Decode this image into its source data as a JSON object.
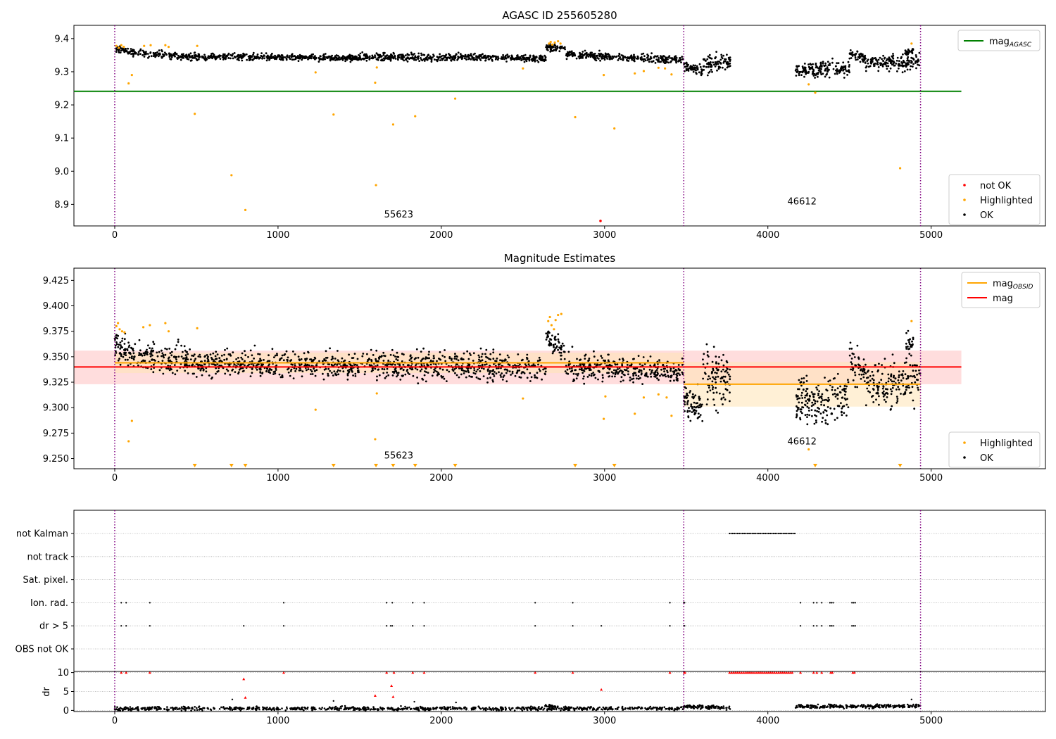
{
  "colors": {
    "ok": "#000000",
    "highlighted": "#ffa500",
    "not_ok": "#ff0000",
    "agasc_line": "#008000",
    "mag_line": "#ff0000",
    "mag_obsid": "#ffa500",
    "obsid_sep": "#800080",
    "band_mag": "#ffb3b3",
    "band_obsid": "#ffe4b5"
  },
  "chart_data": [
    {
      "type": "scatter",
      "title": "AGASC ID 255605280",
      "xlim": [
        -250,
        5700
      ],
      "ylim": [
        8.835,
        9.44
      ],
      "x_ticks": [
        0,
        1000,
        2000,
        3000,
        4000,
        5000
      ],
      "y_ticks": [
        8.9,
        9.0,
        9.1,
        9.2,
        9.3,
        9.4
      ],
      "y_tick_labels": [
        "8.9",
        "9.0",
        "9.1",
        "9.2",
        "9.3",
        "9.4"
      ],
      "obsid_boundaries": [
        0,
        3485,
        4935
      ],
      "obsid_labels": [
        {
          "text": "55623",
          "x": 1650,
          "y": 8.86
        },
        {
          "text": "46612",
          "x": 4120,
          "y": 8.9
        }
      ],
      "legend_top": {
        "position": "top-right",
        "entries": [
          {
            "label": "mag",
            "sub": "AGASC",
            "kind": "line",
            "color": "#008000"
          }
        ]
      },
      "legend_bottom": {
        "position": "bottom-right",
        "entries": [
          {
            "label": "not OK",
            "kind": "dot",
            "color": "#ff0000"
          },
          {
            "label": "Highlighted",
            "kind": "dot",
            "color": "#ffa500"
          },
          {
            "label": "OK",
            "kind": "dot",
            "color": "#000000"
          }
        ]
      },
      "reference_lines": [
        {
          "name": "mag AGASC",
          "y": 9.241,
          "x_range": [
            -250,
            5185
          ]
        }
      ],
      "ok_segments": [
        {
          "x0": 0,
          "x1": 100,
          "y0": 9.368,
          "y1": 9.362,
          "spread": 0.007,
          "n": 50
        },
        {
          "x0": 100,
          "x1": 500,
          "y0": 9.358,
          "y1": 9.345,
          "spread": 0.008,
          "n": 160
        },
        {
          "x0": 500,
          "x1": 1500,
          "y0": 9.345,
          "y1": 9.342,
          "spread": 0.007,
          "n": 420
        },
        {
          "x0": 1500,
          "x1": 2100,
          "y0": 9.345,
          "y1": 9.343,
          "spread": 0.008,
          "n": 250
        },
        {
          "x0": 2100,
          "x1": 2640,
          "y0": 9.345,
          "y1": 9.34,
          "spread": 0.008,
          "n": 220
        },
        {
          "x0": 2640,
          "x1": 2760,
          "y0": 9.375,
          "y1": 9.368,
          "spread": 0.007,
          "n": 60
        },
        {
          "x0": 2760,
          "x1": 3485,
          "y0": 9.352,
          "y1": 9.336,
          "spread": 0.008,
          "n": 300
        },
        {
          "x0": 3485,
          "x1": 3600,
          "y0": 9.315,
          "y1": 9.3,
          "spread": 0.012,
          "n": 60
        },
        {
          "x0": 3600,
          "x1": 3770,
          "y0": 9.32,
          "y1": 9.33,
          "spread": 0.018,
          "n": 90
        },
        {
          "x0": 4170,
          "x1": 4500,
          "y0": 9.305,
          "y1": 9.31,
          "spread": 0.016,
          "n": 170
        },
        {
          "x0": 4500,
          "x1": 4600,
          "y0": 9.355,
          "y1": 9.34,
          "spread": 0.012,
          "n": 50
        },
        {
          "x0": 4600,
          "x1": 4935,
          "y0": 9.325,
          "y1": 9.33,
          "spread": 0.017,
          "n": 160
        },
        {
          "x0": 4840,
          "x1": 4890,
          "y0": 9.36,
          "y1": 9.365,
          "spread": 0.008,
          "n": 25
        }
      ],
      "highlighted_points": [
        [
          10,
          9.378
        ],
        [
          25,
          9.372
        ],
        [
          40,
          9.38
        ],
        [
          55,
          9.375
        ],
        [
          85,
          9.265
        ],
        [
          105,
          9.29
        ],
        [
          180,
          9.378
        ],
        [
          220,
          9.38
        ],
        [
          310,
          9.38
        ],
        [
          330,
          9.375
        ],
        [
          490,
          9.173
        ],
        [
          505,
          9.378
        ],
        [
          715,
          8.988
        ],
        [
          800,
          8.883
        ],
        [
          1230,
          9.298
        ],
        [
          1340,
          9.171
        ],
        [
          1595,
          9.267
        ],
        [
          1600,
          8.958
        ],
        [
          1605,
          9.313
        ],
        [
          1705,
          9.141
        ],
        [
          1840,
          9.166
        ],
        [
          2085,
          9.219
        ],
        [
          2500,
          9.31
        ],
        [
          2660,
          9.385
        ],
        [
          2670,
          9.39
        ],
        [
          2680,
          9.382
        ],
        [
          2695,
          9.388
        ],
        [
          2715,
          9.392
        ],
        [
          2730,
          9.385
        ],
        [
          2820,
          9.163
        ],
        [
          2995,
          9.29
        ],
        [
          3060,
          9.129
        ],
        [
          3185,
          9.295
        ],
        [
          3240,
          9.302
        ],
        [
          3330,
          9.312
        ],
        [
          3370,
          9.31
        ],
        [
          3410,
          9.292
        ],
        [
          4250,
          9.262
        ],
        [
          4290,
          9.237
        ],
        [
          4810,
          9.009
        ],
        [
          4880,
          9.385
        ]
      ],
      "not_ok_points": [
        [
          2975,
          8.85
        ]
      ]
    },
    {
      "type": "scatter",
      "title": "Magnitude Estimates",
      "xlim": [
        -250,
        5700
      ],
      "ylim": [
        9.24,
        9.437
      ],
      "x_ticks": [
        0,
        1000,
        2000,
        3000,
        4000,
        5000
      ],
      "y_ticks": [
        9.25,
        9.275,
        9.3,
        9.325,
        9.35,
        9.375,
        9.4,
        9.425
      ],
      "y_tick_labels": [
        "9.250",
        "9.275",
        "9.300",
        "9.325",
        "9.350",
        "9.375",
        "9.400",
        "9.425"
      ],
      "obsid_boundaries": [
        0,
        3485,
        4935
      ],
      "obsid_labels": [
        {
          "text": "55623",
          "x": 1650,
          "y": 9.25
        },
        {
          "text": "46612",
          "x": 4120,
          "y": 9.264
        }
      ],
      "legend_top": {
        "position": "top-right",
        "entries": [
          {
            "label": "mag",
            "sub": "OBSID",
            "kind": "line",
            "color": "#ffa500"
          },
          {
            "label": "mag",
            "kind": "line",
            "color": "#ff0000"
          }
        ]
      },
      "legend_bottom": {
        "position": "bottom-right",
        "entries": [
          {
            "label": "Highlighted",
            "kind": "dot",
            "color": "#ffa500"
          },
          {
            "label": "OK",
            "kind": "dot",
            "color": "#000000"
          }
        ]
      },
      "mag": {
        "value": 9.34,
        "band": [
          9.323,
          9.356
        ],
        "x_range": [
          -250,
          5185
        ]
      },
      "mag_obsid": [
        {
          "x_range": [
            0,
            3485
          ],
          "value": 9.344,
          "band": [
            9.334,
            9.354
          ]
        },
        {
          "x_range": [
            3485,
            4935
          ],
          "value": 9.323,
          "band": [
            9.301,
            9.345
          ]
        }
      ],
      "ok_segments": [
        {
          "x0": 0,
          "x1": 100,
          "y0": 9.362,
          "y1": 9.352,
          "spread": 0.009,
          "n": 60
        },
        {
          "x0": 100,
          "x1": 500,
          "y0": 9.352,
          "y1": 9.345,
          "spread": 0.01,
          "n": 180
        },
        {
          "x0": 500,
          "x1": 1500,
          "y0": 9.343,
          "y1": 9.341,
          "spread": 0.009,
          "n": 450
        },
        {
          "x0": 1500,
          "x1": 2100,
          "y0": 9.343,
          "y1": 9.342,
          "spread": 0.01,
          "n": 260
        },
        {
          "x0": 2100,
          "x1": 2640,
          "y0": 9.342,
          "y1": 9.338,
          "spread": 0.01,
          "n": 230
        },
        {
          "x0": 2640,
          "x1": 2760,
          "y0": 9.37,
          "y1": 9.355,
          "spread": 0.008,
          "n": 60
        },
        {
          "x0": 2760,
          "x1": 3485,
          "y0": 9.342,
          "y1": 9.334,
          "spread": 0.009,
          "n": 320
        },
        {
          "x0": 3485,
          "x1": 3600,
          "y0": 9.305,
          "y1": 9.295,
          "spread": 0.012,
          "n": 70
        },
        {
          "x0": 3600,
          "x1": 3770,
          "y0": 9.33,
          "y1": 9.33,
          "spread": 0.02,
          "n": 100
        },
        {
          "x0": 4170,
          "x1": 4500,
          "y0": 9.305,
          "y1": 9.31,
          "spread": 0.017,
          "n": 190
        },
        {
          "x0": 4500,
          "x1": 4600,
          "y0": 9.35,
          "y1": 9.33,
          "spread": 0.013,
          "n": 50
        },
        {
          "x0": 4600,
          "x1": 4935,
          "y0": 9.322,
          "y1": 9.328,
          "spread": 0.017,
          "n": 170
        },
        {
          "x0": 4840,
          "x1": 4890,
          "y0": 9.36,
          "y1": 9.365,
          "spread": 0.008,
          "n": 25
        }
      ],
      "highlighted_points": [
        [
          10,
          9.38
        ],
        [
          20,
          9.383
        ],
        [
          30,
          9.377
        ],
        [
          45,
          9.375
        ],
        [
          60,
          9.374
        ],
        [
          85,
          9.267
        ],
        [
          105,
          9.287
        ],
        [
          175,
          9.379
        ],
        [
          215,
          9.381
        ],
        [
          310,
          9.383
        ],
        [
          330,
          9.375
        ],
        [
          505,
          9.378
        ],
        [
          1230,
          9.298
        ],
        [
          1595,
          9.269
        ],
        [
          1605,
          9.314
        ],
        [
          2500,
          9.309
        ],
        [
          2655,
          9.385
        ],
        [
          2665,
          9.389
        ],
        [
          2675,
          9.381
        ],
        [
          2690,
          9.377
        ],
        [
          2700,
          9.386
        ],
        [
          2715,
          9.391
        ],
        [
          2735,
          9.392
        ],
        [
          2995,
          9.289
        ],
        [
          3005,
          9.311
        ],
        [
          3185,
          9.294
        ],
        [
          3240,
          9.31
        ],
        [
          3330,
          9.313
        ],
        [
          3380,
          9.31
        ],
        [
          3410,
          9.292
        ],
        [
          4250,
          9.259
        ],
        [
          4880,
          9.385
        ]
      ],
      "limit_markers": [
        490,
        715,
        800,
        1340,
        1600,
        1705,
        1840,
        2085,
        2820,
        3060,
        4290,
        4810
      ]
    },
    {
      "type": "scatter",
      "xlim": [
        -250,
        5700
      ],
      "x_ticks": [
        0,
        1000,
        2000,
        3000,
        4000,
        5000
      ],
      "obsid_boundaries": [
        0,
        3485,
        4935
      ],
      "flag_rows": [
        "not Kalman",
        "not track",
        "Sat. pixel.",
        "Ion. rad.",
        "dr > 5",
        "OBS not OK"
      ],
      "flags": {
        "not Kalman": {
          "ranges": [
            [
              3765,
              4170
            ]
          ],
          "points": []
        },
        "not track": {
          "ranges": [],
          "points": []
        },
        "Sat. pixel.": {
          "ranges": [],
          "points": []
        },
        "Ion. rad.": {
          "ranges": [
            [
              4380,
              4400
            ],
            [
              4515,
              4540
            ]
          ],
          "points": [
            40,
            70,
            215,
            1035,
            1665,
            1700,
            1825,
            1895,
            2575,
            2805,
            3400,
            3485,
            3490,
            4200,
            4280,
            4300,
            4330
          ]
        },
        "dr > 5": {
          "ranges": [
            [
              4380,
              4400
            ],
            [
              4515,
              4540
            ]
          ],
          "points": [
            40,
            70,
            215,
            790,
            1035,
            1665,
            1690,
            1700,
            1825,
            1895,
            2575,
            2805,
            2980,
            3400,
            3485,
            3490,
            4200,
            4280,
            4300,
            4330
          ]
        },
        "OBS not OK": {
          "ranges": [],
          "points": []
        }
      }
    },
    {
      "type": "scatter",
      "ylabel": "dr",
      "xlim": [
        -250,
        5700
      ],
      "ylim": [
        -0.3,
        10.3
      ],
      "x_ticks": [
        0,
        1000,
        2000,
        3000,
        4000,
        5000
      ],
      "x_tick_labels": [
        "0",
        "1000",
        "2000",
        "3000",
        "4000",
        "5000"
      ],
      "y_ticks": [
        0,
        5,
        10
      ],
      "y_tick_labels": [
        "0",
        "5",
        "10"
      ],
      "obsid_boundaries": [
        0,
        3485,
        4935
      ],
      "ok_segments": [
        {
          "x0": 0,
          "x1": 3485,
          "y0": 0.5,
          "y1": 0.5,
          "spread": 0.35,
          "n": 900
        },
        {
          "x0": 2630,
          "x1": 2700,
          "y0": 1.3,
          "y1": 1.0,
          "spread": 0.3,
          "n": 20
        },
        {
          "x0": 3485,
          "x1": 3770,
          "y0": 1.0,
          "y1": 0.7,
          "spread": 0.35,
          "n": 90
        },
        {
          "x0": 4170,
          "x1": 4935,
          "y0": 1.0,
          "y1": 1.2,
          "spread": 0.35,
          "n": 230
        }
      ],
      "black_outliers": [
        [
          720,
          2.9
        ],
        [
          1340,
          2.5
        ],
        [
          1835,
          2.3
        ],
        [
          2090,
          2.1
        ],
        [
          4880,
          2.9
        ]
      ],
      "not_ok_points": [
        [
          40,
          10
        ],
        [
          70,
          10
        ],
        [
          215,
          10
        ],
        [
          790,
          8.3
        ],
        [
          800,
          3.4
        ],
        [
          1035,
          10
        ],
        [
          1595,
          3.9
        ],
        [
          1665,
          10
        ],
        [
          1695,
          6.5
        ],
        [
          1705,
          3.6
        ],
        [
          1710,
          10
        ],
        [
          1825,
          10
        ],
        [
          1895,
          10
        ],
        [
          2575,
          10
        ],
        [
          2805,
          10
        ],
        [
          2980,
          5.5
        ],
        [
          3400,
          10
        ],
        [
          3488,
          10
        ],
        [
          3492,
          10
        ],
        [
          4200,
          10
        ],
        [
          4280,
          10
        ],
        [
          4300,
          10
        ],
        [
          4330,
          10
        ],
        [
          4385,
          10
        ],
        [
          4395,
          10
        ],
        [
          4520,
          10
        ],
        [
          4530,
          10
        ]
      ],
      "not_ok_ranges": [
        [
          3765,
          4160
        ]
      ]
    }
  ]
}
